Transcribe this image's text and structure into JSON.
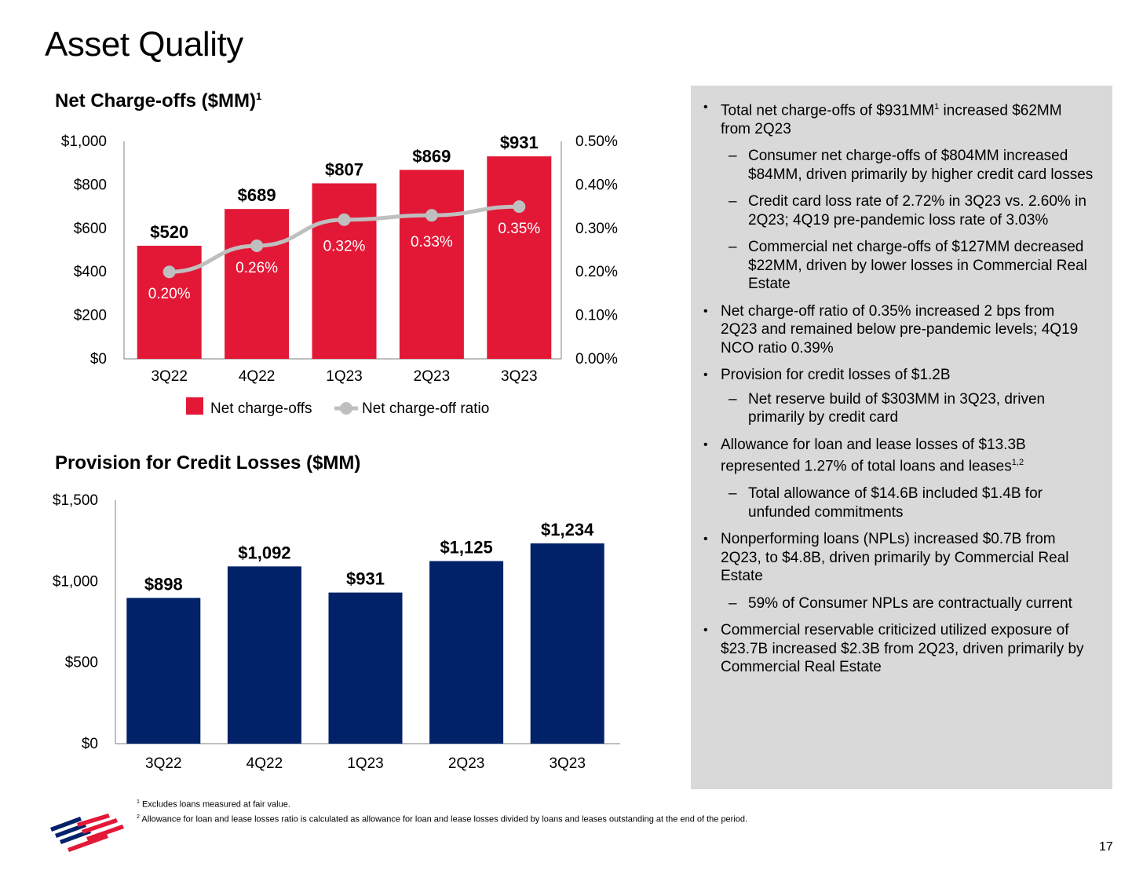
{
  "page": {
    "title": "Asset Quality",
    "page_number": "17"
  },
  "colors": {
    "nco_bar": "#e31837",
    "ratio_line": "#bfbfbf",
    "provision_bar": "#012169",
    "panel_bg": "#d9d9d9"
  },
  "chart_data": [
    {
      "type": "bar",
      "title": "Net Charge-offs ($MM)",
      "title_footnote": "1",
      "categories": [
        "3Q22",
        "4Q22",
        "1Q23",
        "2Q23",
        "3Q23"
      ],
      "series": [
        {
          "name": "Net charge-offs",
          "axis": "left",
          "type": "bar",
          "values": [
            520,
            689,
            807,
            869,
            931
          ],
          "labels": [
            "$520",
            "$689",
            "$807",
            "$869",
            "$931"
          ]
        },
        {
          "name": "Net charge-off ratio",
          "axis": "right",
          "type": "line",
          "values": [
            0.2,
            0.26,
            0.32,
            0.33,
            0.35
          ],
          "labels": [
            "0.20%",
            "0.26%",
            "0.32%",
            "0.33%",
            "0.35%"
          ]
        }
      ],
      "ylim": [
        0,
        1000
      ],
      "yticks": [
        "$0",
        "$200",
        "$400",
        "$600",
        "$800",
        "$1,000"
      ],
      "y2lim": [
        0,
        0.5
      ],
      "y2ticks": [
        "0.00%",
        "0.10%",
        "0.20%",
        "0.30%",
        "0.40%",
        "0.50%"
      ],
      "legend": "bottom"
    },
    {
      "type": "bar",
      "title": "Provision for Credit Losses ($MM)",
      "categories": [
        "3Q22",
        "4Q22",
        "1Q23",
        "2Q23",
        "3Q23"
      ],
      "values": [
        898,
        1092,
        931,
        1125,
        1234
      ],
      "labels": [
        "$898",
        "$1,092",
        "$931",
        "$1,125",
        "$1,234"
      ],
      "ylim": [
        0,
        1500
      ],
      "yticks": [
        "$0",
        "$500",
        "$1,000",
        "$1,500"
      ]
    }
  ],
  "panel": {
    "items": [
      {
        "level": 1,
        "text": "Total net charge-offs of $931MM",
        "sup": "1",
        "text2": " increased $62MM from 2Q23"
      },
      {
        "level": 2,
        "text": "Consumer net charge-offs of $804MM increased $84MM, driven primarily by higher credit card losses"
      },
      {
        "level": 2,
        "text": "Credit card loss rate of 2.72% in 3Q23 vs. 2.60% in 2Q23; 4Q19 pre-pandemic loss rate of 3.03%"
      },
      {
        "level": 2,
        "text": "Commercial net charge-offs of $127MM decreased $22MM, driven by lower losses in Commercial Real Estate"
      },
      {
        "level": 1,
        "text": "Net charge-off ratio of 0.35% increased 2 bps from 2Q23 and remained below pre-pandemic levels; 4Q19 NCO ratio 0.39%"
      },
      {
        "level": 1,
        "text": "Provision for credit losses of $1.2B"
      },
      {
        "level": 2,
        "text": "Net reserve build of $303MM in 3Q23, driven primarily by credit card"
      },
      {
        "level": 1,
        "text": "Allowance for loan and lease losses of $13.3B represented 1.27% of total loans and leases",
        "sup": "1,2"
      },
      {
        "level": 2,
        "text": "Total allowance of $14.6B included $1.4B for unfunded commitments"
      },
      {
        "level": 1,
        "text": "Nonperforming loans (NPLs) increased $0.7B from 2Q23, to $4.8B, driven primarily by Commercial Real Estate"
      },
      {
        "level": 2,
        "text": "59% of Consumer NPLs are contractually current"
      },
      {
        "level": 1,
        "text": "Commercial reservable criticized utilized exposure of $23.7B increased $2.3B from 2Q23, driven primarily by Commercial Real Estate"
      }
    ]
  },
  "footnotes": [
    {
      "num": "1",
      "text": "Excludes loans measured at fair value."
    },
    {
      "num": "2",
      "text": "Allowance for loan and lease losses ratio is calculated as allowance for loan and lease losses divided by loans and leases outstanding at the end of the period."
    }
  ],
  "logo": {
    "name": "bank-flag-logo"
  }
}
